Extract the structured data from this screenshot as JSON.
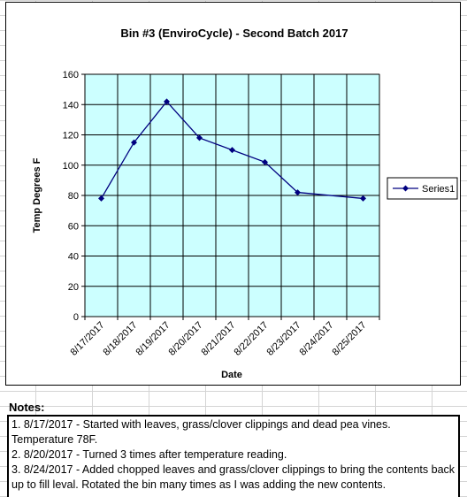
{
  "notes": {
    "header": "Notes:",
    "items": [
      "1. 8/17/2017 - Started with leaves, grass/clover clippings and dead pea vines. Temperature 78F.",
      "2. 8/20/2017 - Turned 3 times after temperature reading.",
      "3. 8/24/2017 - Added chopped leaves and grass/clover clippings to bring the contents back up to fill leval. Rotated the bin many times as I was adding the new contents."
    ]
  },
  "chart_data": {
    "type": "line",
    "title": "Bin #3 (EnviroCycle) - Second Batch 2017",
    "xlabel": "Date",
    "ylabel": "Temp Degrees F",
    "categories": [
      "8/17/2017",
      "8/18/2017",
      "8/19/2017",
      "8/20/2017",
      "8/21/2017",
      "8/22/2017",
      "8/23/2017",
      "8/24/2017",
      "8/25/2017"
    ],
    "series": [
      {
        "name": "Series1",
        "x": [
          "8/17/2017",
          "8/18/2017",
          "8/19/2017",
          "8/20/2017",
          "8/21/2017",
          "8/22/2017",
          "8/23/2017",
          "8/25/2017"
        ],
        "values": [
          78,
          115,
          142,
          118,
          110,
          102,
          82,
          78
        ]
      }
    ],
    "ylim": [
      0,
      160
    ],
    "yticks": [
      0,
      20,
      40,
      60,
      80,
      100,
      120,
      140,
      160
    ],
    "grid": true,
    "legend": "right",
    "colors": {
      "plot_background": "#ccffff",
      "line": "#000080",
      "marker": "#000080",
      "grid": "#000000"
    }
  }
}
